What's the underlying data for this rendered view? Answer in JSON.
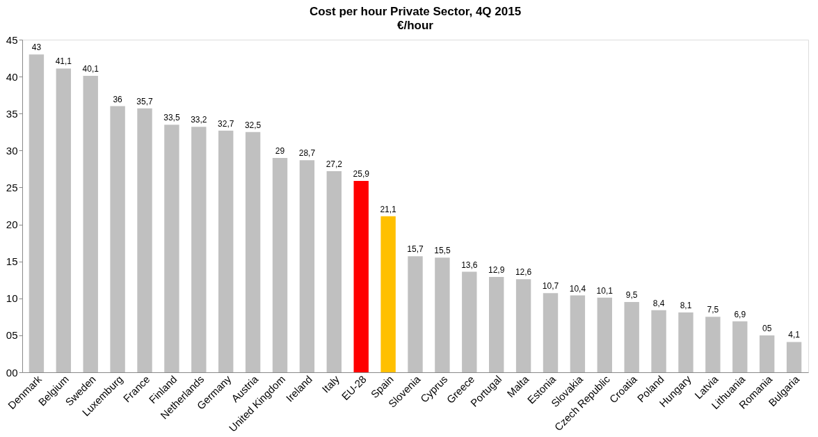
{
  "chart_data": {
    "type": "bar",
    "title": "Cost per hour Private Sector, 4Q 2015",
    "subtitle": "€/hour",
    "categories": [
      "Denmark",
      "Belgium",
      "Sweden",
      "Luxemburg",
      "France",
      "Finland",
      "Netherlands",
      "Germany",
      "Austria",
      "United Kingdom",
      "Ireland",
      "Italy",
      "EU-28",
      "Spain",
      "Slovenia",
      "Cyprus",
      "Greece",
      "Portugal",
      "Malta",
      "Estonia",
      "Slovakia",
      "Czech Republic",
      "Croatia",
      "Poland",
      "Hungary",
      "Latvia",
      "Lithuania",
      "Romania",
      "Bulgaria"
    ],
    "values": [
      43,
      41.1,
      40.1,
      36,
      35.7,
      33.5,
      33.2,
      32.7,
      32.5,
      29,
      28.7,
      27.2,
      25.9,
      21.1,
      15.7,
      15.5,
      13.6,
      12.9,
      12.6,
      10.7,
      10.4,
      10.1,
      9.5,
      8.4,
      8.1,
      7.5,
      6.9,
      5,
      4.1
    ],
    "value_labels": [
      "43",
      "41,1",
      "40,1",
      "36",
      "35,7",
      "33,5",
      "33,2",
      "32,7",
      "32,5",
      "29",
      "28,7",
      "27,2",
      "25,9",
      "21,1",
      "15,7",
      "15,5",
      "13,6",
      "12,9",
      "12,6",
      "10,7",
      "10,4",
      "10,1",
      "9,5",
      "8,4",
      "8,1",
      "7,5",
      "6,9",
      "05",
      "4,1"
    ],
    "colors": [
      "#c0c0c0",
      "#c0c0c0",
      "#c0c0c0",
      "#c0c0c0",
      "#c0c0c0",
      "#c0c0c0",
      "#c0c0c0",
      "#c0c0c0",
      "#c0c0c0",
      "#c0c0c0",
      "#c0c0c0",
      "#c0c0c0",
      "#ff0000",
      "#ffc000",
      "#c0c0c0",
      "#c0c0c0",
      "#c0c0c0",
      "#c0c0c0",
      "#c0c0c0",
      "#c0c0c0",
      "#c0c0c0",
      "#c0c0c0",
      "#c0c0c0",
      "#c0c0c0",
      "#c0c0c0",
      "#c0c0c0",
      "#c0c0c0",
      "#c0c0c0",
      "#c0c0c0"
    ],
    "ylim": [
      0,
      45
    ],
    "yticks": [
      {
        "value": 0,
        "label": "00"
      },
      {
        "value": 5,
        "label": "05"
      },
      10,
      15,
      20,
      25,
      30,
      35,
      40,
      45
    ],
    "grid": false
  }
}
